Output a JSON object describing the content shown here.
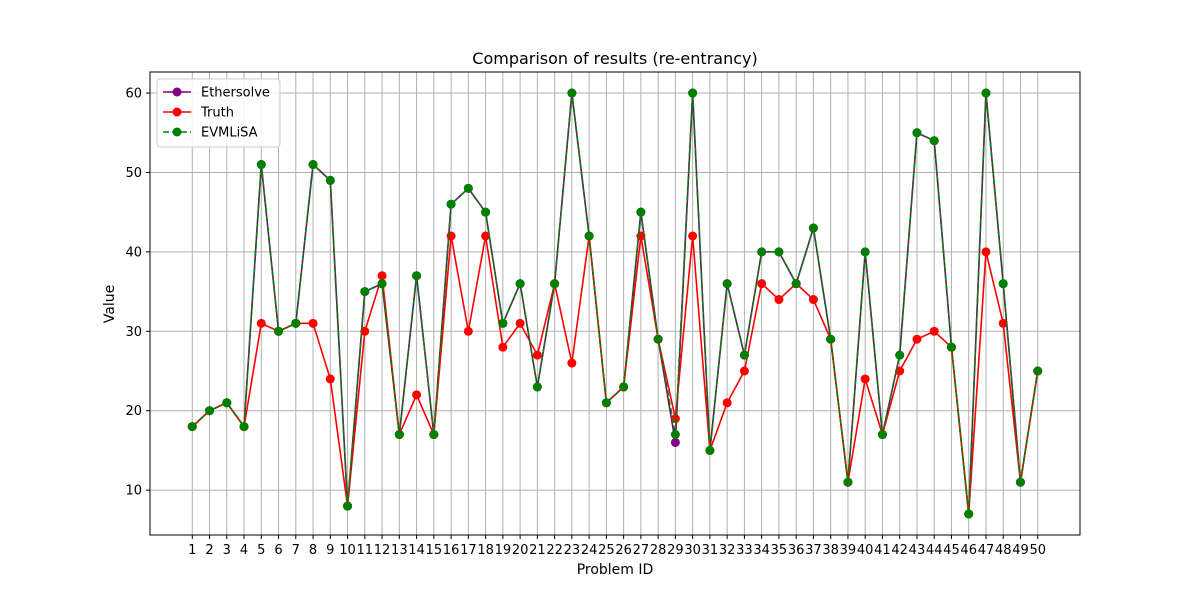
{
  "chart_data": {
    "type": "line",
    "title": "Comparison of results (re-entrancy)",
    "xlabel": "Problem ID",
    "ylabel": "Value",
    "x": [
      1,
      2,
      3,
      4,
      5,
      6,
      7,
      8,
      9,
      10,
      11,
      12,
      13,
      14,
      15,
      16,
      17,
      18,
      19,
      20,
      21,
      22,
      23,
      24,
      25,
      26,
      27,
      28,
      29,
      30,
      31,
      32,
      33,
      34,
      35,
      36,
      37,
      38,
      39,
      40,
      41,
      42,
      43,
      44,
      45,
      46,
      47,
      48,
      49,
      50
    ],
    "x_tick_labels": [
      "1",
      "2",
      "3",
      "4",
      "5",
      "6",
      "7",
      "8",
      "9",
      "10",
      "11",
      "12",
      "13",
      "14",
      "15",
      "16",
      "17",
      "18",
      "19",
      "20",
      "21",
      "22",
      "23",
      "24",
      "25",
      "26",
      "27",
      "28",
      "29",
      "30",
      "31",
      "32",
      "33",
      "34",
      "35",
      "36",
      "37",
      "38",
      "39",
      "40",
      "41",
      "42",
      "43",
      "44",
      "45",
      "46",
      "47",
      "48",
      "49",
      "50"
    ],
    "y_ticks": [
      "10",
      "20",
      "30",
      "40",
      "50",
      "60"
    ],
    "ylim": [
      4.35,
      62.65
    ],
    "grid": true,
    "legend_position": "top-left",
    "series": [
      {
        "name": "Ethersolve",
        "color": "#800080",
        "line_style": "solid",
        "values": [
          18,
          20,
          21,
          18,
          51,
          30,
          31,
          51,
          49,
          8,
          35,
          36,
          17,
          37,
          17,
          46,
          48,
          45,
          31,
          36,
          23,
          36,
          60,
          42,
          21,
          23,
          45,
          29,
          16,
          60,
          15,
          36,
          27,
          40,
          40,
          36,
          43,
          29,
          11,
          40,
          17,
          27,
          55,
          54,
          28,
          7,
          60,
          36,
          11,
          25
        ]
      },
      {
        "name": "Truth",
        "color": "#ff0000",
        "line_style": "solid",
        "values": [
          18,
          20,
          21,
          18,
          31,
          30,
          31,
          31,
          24,
          8,
          30,
          37,
          17,
          22,
          17,
          42,
          30,
          42,
          28,
          31,
          27,
          36,
          26,
          42,
          21,
          23,
          42,
          29,
          19,
          42,
          15,
          21,
          25,
          36,
          34,
          36,
          34,
          29,
          11,
          24,
          17,
          25,
          29,
          30,
          28,
          7,
          40,
          31,
          11,
          25
        ]
      },
      {
        "name": "EVMLiSA",
        "color": "#008000",
        "line_style": "dashed",
        "values": [
          18,
          20,
          21,
          18,
          51,
          30,
          31,
          51,
          49,
          8,
          35,
          36,
          17,
          37,
          17,
          46,
          48,
          45,
          31,
          36,
          23,
          36,
          60,
          42,
          21,
          23,
          45,
          29,
          17,
          60,
          15,
          36,
          27,
          40,
          40,
          36,
          43,
          29,
          11,
          40,
          17,
          27,
          55,
          54,
          28,
          7,
          60,
          36,
          11,
          25
        ]
      }
    ]
  }
}
